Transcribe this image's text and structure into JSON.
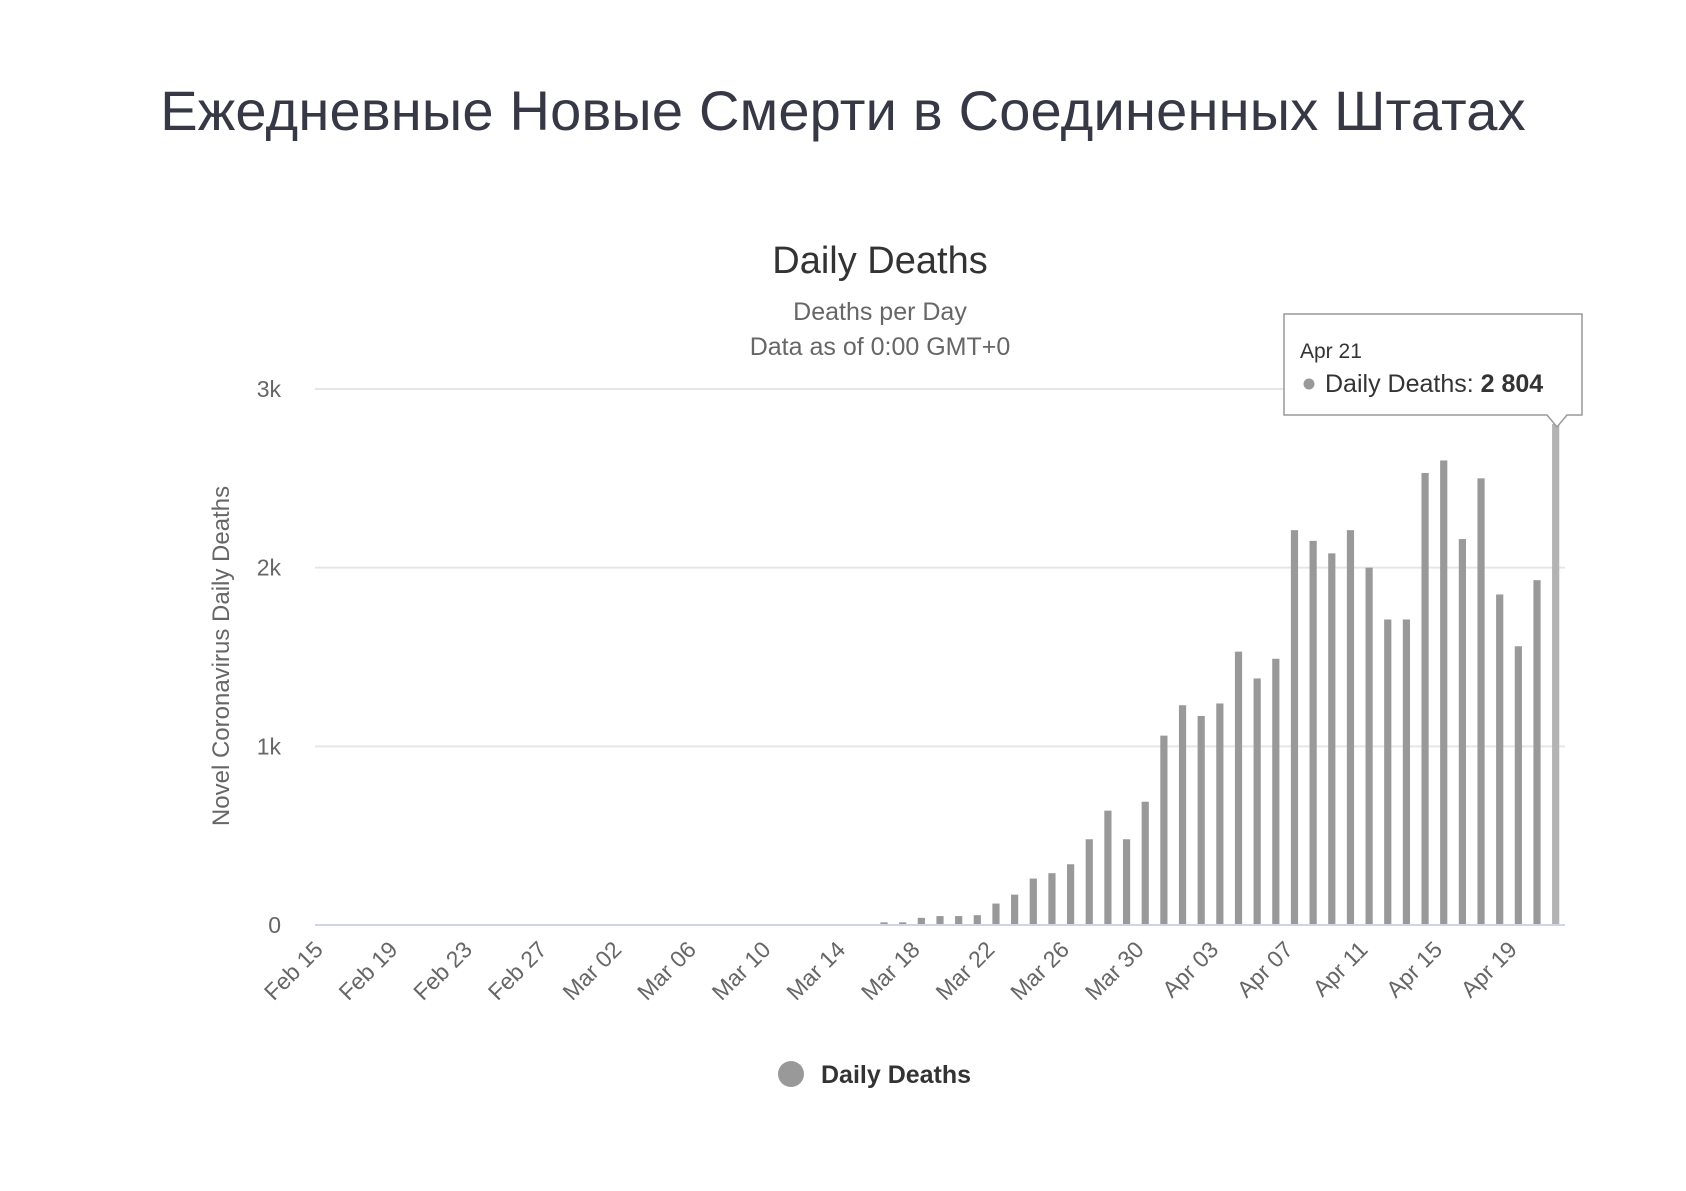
{
  "page": {
    "heading": "Ежедневные Новые Смерти в Соединенных Штатах"
  },
  "chart_data": {
    "type": "bar",
    "title": "Daily Deaths",
    "subtitle": [
      "Deaths per Day",
      "Data as of 0:00 GMT+0"
    ],
    "ylabel": "Novel Coronavirus Daily Deaths",
    "xlabel": "",
    "ylim": [
      0,
      3000
    ],
    "yticks": [
      0,
      1000,
      2000,
      3000
    ],
    "ytick_labels": [
      "0",
      "1k",
      "2k",
      "3k"
    ],
    "grid": true,
    "legend_position": "bottom-center",
    "color": "#999999",
    "highlight_color": "#b3b3b3",
    "categories": [
      "Feb 15",
      "Feb 16",
      "Feb 17",
      "Feb 18",
      "Feb 19",
      "Feb 20",
      "Feb 21",
      "Feb 22",
      "Feb 23",
      "Feb 24",
      "Feb 25",
      "Feb 26",
      "Feb 27",
      "Feb 28",
      "Feb 29",
      "Mar 01",
      "Mar 02",
      "Mar 03",
      "Mar 04",
      "Mar 05",
      "Mar 06",
      "Mar 07",
      "Mar 08",
      "Mar 09",
      "Mar 10",
      "Mar 11",
      "Mar 12",
      "Mar 13",
      "Mar 14",
      "Mar 15",
      "Mar 16",
      "Mar 17",
      "Mar 18",
      "Mar 19",
      "Mar 20",
      "Mar 21",
      "Mar 22",
      "Mar 23",
      "Mar 24",
      "Mar 25",
      "Mar 26",
      "Mar 27",
      "Mar 28",
      "Mar 29",
      "Mar 30",
      "Mar 31",
      "Apr 01",
      "Apr 02",
      "Apr 03",
      "Apr 04",
      "Apr 05",
      "Apr 06",
      "Apr 07",
      "Apr 08",
      "Apr 09",
      "Apr 10",
      "Apr 11",
      "Apr 12",
      "Apr 13",
      "Apr 14",
      "Apr 15",
      "Apr 16",
      "Apr 17",
      "Apr 18",
      "Apr 19",
      "Apr 20",
      "Apr 21"
    ],
    "xtick_labels": [
      "Feb 15",
      "Feb 19",
      "Feb 23",
      "Feb 27",
      "Mar 02",
      "Mar 06",
      "Mar 10",
      "Mar 14",
      "Mar 18",
      "Mar 22",
      "Mar 26",
      "Mar 30",
      "Apr 03",
      "Apr 07",
      "Apr 11",
      "Apr 15",
      "Apr 19"
    ],
    "series": [
      {
        "name": "Daily Deaths",
        "values": [
          0,
          0,
          0,
          0,
          0,
          0,
          0,
          0,
          0,
          0,
          0,
          0,
          0,
          0,
          0,
          0,
          0,
          0,
          0,
          0,
          0,
          0,
          0,
          0,
          0,
          0,
          0,
          0,
          0,
          0,
          15,
          15,
          40,
          50,
          50,
          55,
          120,
          170,
          260,
          290,
          340,
          480,
          640,
          480,
          690,
          1060,
          1230,
          1170,
          1240,
          1530,
          1380,
          1490,
          2210,
          2150,
          2080,
          2210,
          2000,
          1710,
          1710,
          2530,
          2600,
          2160,
          2500,
          1850,
          1560,
          1930,
          2804
        ]
      }
    ],
    "tooltip": {
      "date": "Apr 21",
      "label": "Daily Deaths: ",
      "value": "2 804"
    }
  }
}
